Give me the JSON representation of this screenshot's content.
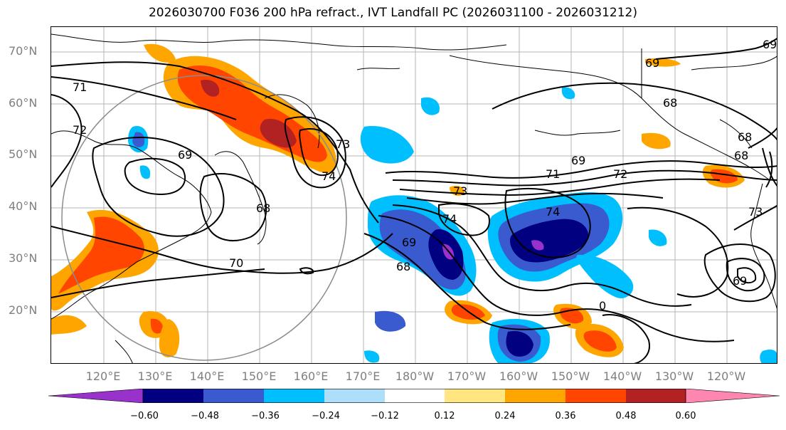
{
  "title": "2026030700 F036 200 hPa refract., IVT Landfall PC (2026031100 - 2026031212)",
  "lat_labels": [
    "70°N",
    "60°N",
    "50°N",
    "40°N",
    "30°N",
    "20°N"
  ],
  "lon_labels": [
    "120°E",
    "130°E",
    "140°E",
    "150°E",
    "160°E",
    "170°E",
    "180°W",
    "170°W",
    "160°W",
    "150°W",
    "140°W",
    "130°W",
    "120°W"
  ],
  "contour_labels": [
    "71",
    "72",
    "69",
    "73",
    "74",
    "68",
    "70",
    "69",
    "68",
    "69",
    "71",
    "72",
    "73",
    "74",
    "69",
    "68",
    "74",
    "0",
    "69",
    "68",
    "73",
    "68",
    "69"
  ],
  "colorbar": {
    "colors": [
      "#9932CC",
      "#000080",
      "#3A5BCF",
      "#00BFFF",
      "#ADDFFA",
      "#FFFFFF",
      "#FFE680",
      "#FFA500",
      "#FF4500",
      "#B22222",
      "#FF86B0"
    ],
    "ticks": [
      "−0.60",
      "−0.48",
      "−0.36",
      "−0.24",
      "−0.12",
      "0.12",
      "0.24",
      "0.36",
      "0.48",
      "0.60"
    ]
  }
}
